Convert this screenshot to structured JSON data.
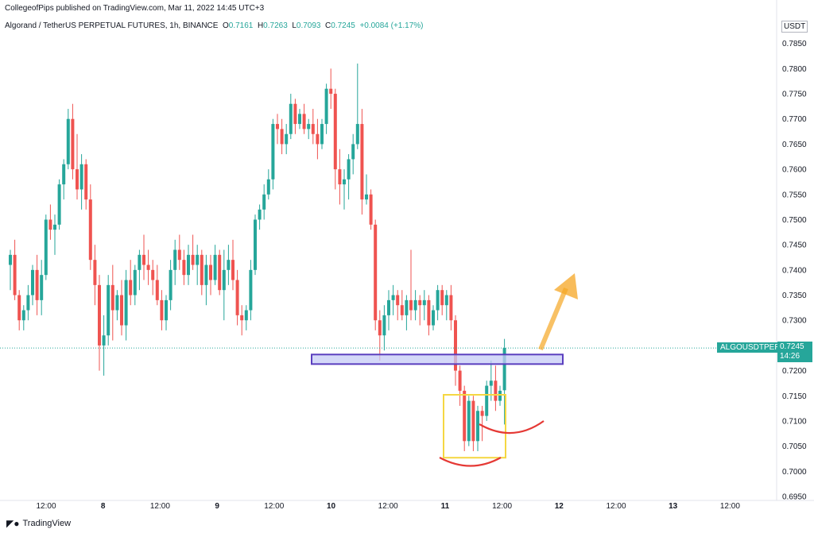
{
  "header": {
    "published": "CollegeofPips published on TradingView.com, Mar 11, 2022 14:45 UTC+3",
    "symbol": "Algorand / TetherUS PERPETUAL FUTURES, 1h, BINANCE",
    "o_label": "O",
    "o_value": "0.7161",
    "h_label": "H",
    "h_value": "0.7263",
    "l_label": "L",
    "l_value": "0.7093",
    "c_label": "C",
    "c_value": "0.7245",
    "change": "+0.0084 (+1.17%)",
    "currency": "USDT"
  },
  "last_price": {
    "symbol_tag": "ALGOUSDTPERP",
    "price": "0.7245",
    "countdown": "14:26"
  },
  "footer": {
    "brand": "TradingView"
  },
  "colors": {
    "up": "#26a69a",
    "down": "#ef5350",
    "axis_text": "#131722"
  },
  "chart_data": {
    "type": "candlestick",
    "ylim": [
      0.695,
      0.79
    ],
    "y_ticks": [
      "0.7850",
      "0.7800",
      "0.7750",
      "0.7700",
      "0.7650",
      "0.7600",
      "0.7550",
      "0.7500",
      "0.7450",
      "0.7400",
      "0.7350",
      "0.7300",
      "0.7250",
      "0.7200",
      "0.7150",
      "0.7100",
      "0.7050",
      "0.7000",
      "0.6950"
    ],
    "x_ticks": [
      "12:00",
      "8",
      "12:00",
      "9",
      "12:00",
      "10",
      "12:00",
      "11",
      "12:00",
      "12",
      "12:00",
      "13",
      "12:00"
    ],
    "candles": [
      [
        0.741,
        0.744,
        0.736,
        0.743
      ],
      [
        0.743,
        0.746,
        0.734,
        0.735
      ],
      [
        0.735,
        0.736,
        0.728,
        0.73
      ],
      [
        0.73,
        0.733,
        0.728,
        0.732
      ],
      [
        0.732,
        0.737,
        0.73,
        0.735
      ],
      [
        0.735,
        0.741,
        0.733,
        0.74
      ],
      [
        0.74,
        0.743,
        0.731,
        0.734
      ],
      [
        0.734,
        0.742,
        0.731,
        0.739
      ],
      [
        0.739,
        0.751,
        0.738,
        0.75
      ],
      [
        0.75,
        0.753,
        0.746,
        0.748
      ],
      [
        0.748,
        0.751,
        0.743,
        0.749
      ],
      [
        0.749,
        0.758,
        0.748,
        0.757
      ],
      [
        0.757,
        0.762,
        0.754,
        0.761
      ],
      [
        0.761,
        0.772,
        0.76,
        0.77
      ],
      [
        0.77,
        0.773,
        0.758,
        0.76
      ],
      [
        0.76,
        0.767,
        0.754,
        0.756
      ],
      [
        0.756,
        0.763,
        0.752,
        0.761
      ],
      [
        0.761,
        0.762,
        0.752,
        0.754
      ],
      [
        0.754,
        0.757,
        0.74,
        0.742
      ],
      [
        0.742,
        0.745,
        0.733,
        0.737
      ],
      [
        0.737,
        0.739,
        0.72,
        0.725
      ],
      [
        0.725,
        0.731,
        0.719,
        0.727
      ],
      [
        0.727,
        0.739,
        0.725,
        0.737
      ],
      [
        0.737,
        0.741,
        0.726,
        0.732
      ],
      [
        0.732,
        0.736,
        0.73,
        0.735
      ],
      [
        0.735,
        0.738,
        0.727,
        0.729
      ],
      [
        0.729,
        0.74,
        0.726,
        0.738
      ],
      [
        0.738,
        0.742,
        0.733,
        0.735
      ],
      [
        0.735,
        0.741,
        0.733,
        0.74
      ],
      [
        0.74,
        0.744,
        0.736,
        0.743
      ],
      [
        0.743,
        0.747,
        0.738,
        0.741
      ],
      [
        0.741,
        0.744,
        0.737,
        0.74
      ],
      [
        0.74,
        0.742,
        0.735,
        0.738
      ],
      [
        0.738,
        0.741,
        0.733,
        0.734
      ],
      [
        0.734,
        0.736,
        0.728,
        0.73
      ],
      [
        0.73,
        0.735,
        0.728,
        0.734
      ],
      [
        0.734,
        0.742,
        0.732,
        0.74
      ],
      [
        0.74,
        0.746,
        0.737,
        0.744
      ],
      [
        0.744,
        0.747,
        0.74,
        0.742
      ],
      [
        0.742,
        0.744,
        0.737,
        0.739
      ],
      [
        0.739,
        0.745,
        0.737,
        0.743
      ],
      [
        0.743,
        0.747,
        0.74,
        0.741
      ],
      [
        0.741,
        0.745,
        0.737,
        0.743
      ],
      [
        0.743,
        0.744,
        0.735,
        0.737
      ],
      [
        0.737,
        0.743,
        0.733,
        0.741
      ],
      [
        0.741,
        0.743,
        0.735,
        0.738
      ],
      [
        0.738,
        0.745,
        0.737,
        0.743
      ],
      [
        0.743,
        0.744,
        0.735,
        0.736
      ],
      [
        0.736,
        0.744,
        0.73,
        0.74
      ],
      [
        0.74,
        0.745,
        0.737,
        0.742
      ],
      [
        0.742,
        0.746,
        0.736,
        0.738
      ],
      [
        0.738,
        0.74,
        0.729,
        0.731
      ],
      [
        0.731,
        0.733,
        0.727,
        0.73
      ],
      [
        0.73,
        0.733,
        0.728,
        0.732
      ],
      [
        0.732,
        0.742,
        0.73,
        0.74
      ],
      [
        0.74,
        0.751,
        0.739,
        0.75
      ],
      [
        0.75,
        0.753,
        0.748,
        0.752
      ],
      [
        0.752,
        0.757,
        0.75,
        0.755
      ],
      [
        0.755,
        0.76,
        0.754,
        0.758
      ],
      [
        0.758,
        0.77,
        0.756,
        0.769
      ],
      [
        0.769,
        0.771,
        0.765,
        0.768
      ],
      [
        0.768,
        0.77,
        0.763,
        0.765
      ],
      [
        0.765,
        0.769,
        0.763,
        0.767
      ],
      [
        0.767,
        0.775,
        0.766,
        0.773
      ],
      [
        0.773,
        0.774,
        0.767,
        0.769
      ],
      [
        0.769,
        0.772,
        0.768,
        0.771
      ],
      [
        0.771,
        0.773,
        0.767,
        0.768
      ],
      [
        0.768,
        0.77,
        0.766,
        0.769
      ],
      [
        0.769,
        0.772,
        0.765,
        0.767
      ],
      [
        0.767,
        0.77,
        0.762,
        0.765
      ],
      [
        0.765,
        0.77,
        0.764,
        0.769
      ],
      [
        0.769,
        0.777,
        0.767,
        0.776
      ],
      [
        0.776,
        0.78,
        0.772,
        0.775
      ],
      [
        0.775,
        0.776,
        0.756,
        0.76
      ],
      [
        0.76,
        0.764,
        0.753,
        0.757
      ],
      [
        0.757,
        0.76,
        0.752,
        0.758
      ],
      [
        0.758,
        0.763,
        0.754,
        0.762
      ],
      [
        0.762,
        0.767,
        0.759,
        0.765
      ],
      [
        0.765,
        0.781,
        0.764,
        0.769
      ],
      [
        0.769,
        0.772,
        0.751,
        0.754
      ],
      [
        0.754,
        0.759,
        0.753,
        0.755
      ],
      [
        0.755,
        0.756,
        0.748,
        0.749
      ],
      [
        0.749,
        0.75,
        0.728,
        0.73
      ],
      [
        0.73,
        0.732,
        0.722,
        0.727
      ],
      [
        0.727,
        0.733,
        0.724,
        0.731
      ],
      [
        0.731,
        0.736,
        0.728,
        0.734
      ],
      [
        0.734,
        0.737,
        0.731,
        0.735
      ],
      [
        0.735,
        0.736,
        0.73,
        0.733
      ],
      [
        0.733,
        0.736,
        0.73,
        0.731
      ],
      [
        0.731,
        0.735,
        0.728,
        0.734
      ],
      [
        0.734,
        0.744,
        0.73,
        0.732
      ],
      [
        0.732,
        0.736,
        0.73,
        0.734
      ],
      [
        0.734,
        0.735,
        0.729,
        0.733
      ],
      [
        0.733,
        0.736,
        0.73,
        0.734
      ],
      [
        0.734,
        0.735,
        0.727,
        0.729
      ],
      [
        0.729,
        0.733,
        0.728,
        0.732
      ],
      [
        0.732,
        0.737,
        0.73,
        0.736
      ],
      [
        0.736,
        0.737,
        0.731,
        0.733
      ],
      [
        0.733,
        0.736,
        0.73,
        0.735
      ],
      [
        0.735,
        0.737,
        0.728,
        0.73
      ],
      [
        0.73,
        0.731,
        0.717,
        0.72
      ],
      [
        0.72,
        0.721,
        0.713,
        0.716
      ],
      [
        0.716,
        0.717,
        0.704,
        0.706
      ],
      [
        0.706,
        0.715,
        0.705,
        0.714
      ],
      [
        0.714,
        0.715,
        0.704,
        0.706
      ],
      [
        0.706,
        0.713,
        0.704,
        0.712
      ],
      [
        0.712,
        0.713,
        0.706,
        0.711
      ],
      [
        0.711,
        0.718,
        0.71,
        0.717
      ],
      [
        0.717,
        0.722,
        0.714,
        0.718
      ],
      [
        0.718,
        0.721,
        0.712,
        0.714
      ],
      [
        0.714,
        0.717,
        0.713,
        0.716
      ],
      [
        0.7161,
        0.7263,
        0.7093,
        0.7245
      ]
    ],
    "last_price_value": 0.7245,
    "annotations": {
      "resistance_zone": {
        "top": 0.7232,
        "bottom": 0.7213
      },
      "highlight_box": {
        "top": 0.7152,
        "bottom": 0.7027
      },
      "projection_arrow": "up-right"
    },
    "grid": false
  }
}
